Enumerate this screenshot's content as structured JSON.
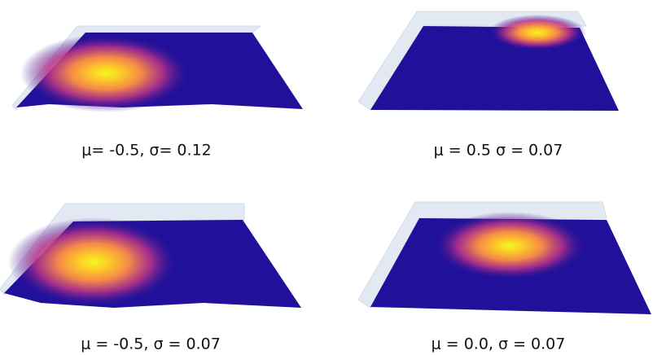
{
  "panels": [
    {
      "caption": "μ= -0.5, σ= 0.12"
    },
    {
      "caption": "μ = 0.5 σ = 0.07"
    },
    {
      "caption": "μ = -0.5, σ = 0.07"
    },
    {
      "caption": "μ = 0.0, σ = 0.07"
    }
  ]
}
